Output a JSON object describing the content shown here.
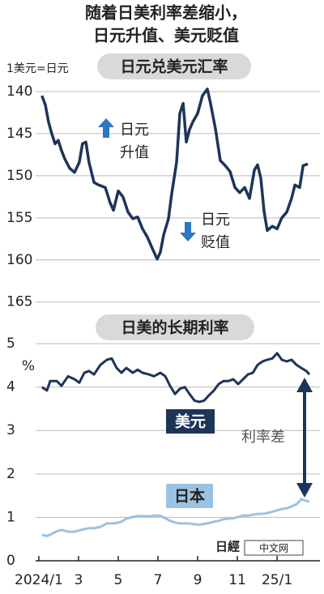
{
  "title": [
    "随着日美利率差缩小，",
    "日元升值、美元贬值"
  ],
  "logo": [
    "日經",
    "中文网"
  ],
  "chart_data": [
    {
      "type": "line",
      "title": "日元兑美元汇率",
      "y_unit": "1美元=日元",
      "annotations": [
        [
          "日元",
          "升值"
        ],
        [
          "日元",
          "贬值"
        ]
      ],
      "y_inverted": true,
      "grid": true,
      "xlim": [
        -0.16,
        14.16
      ],
      "ylim": [
        138.75,
        165.7
      ],
      "yticks": [
        140,
        145,
        150,
        155,
        160,
        165
      ],
      "x": [
        0.16,
        0.33,
        0.49,
        0.65,
        0.82,
        0.98,
        1.14,
        1.31,
        1.55,
        1.8,
        2.04,
        2.2,
        2.37,
        2.53,
        2.78,
        3.02,
        3.35,
        3.59,
        3.76,
        4.0,
        4.24,
        4.49,
        4.73,
        4.98,
        5.22,
        5.47,
        5.71,
        5.96,
        6.12,
        6.29,
        6.53,
        6.69,
        6.94,
        7.1,
        7.27,
        7.43,
        7.59,
        7.76,
        8.0,
        8.24,
        8.49,
        8.65,
        8.9,
        9.14,
        9.39,
        9.63,
        9.88,
        10.12,
        10.37,
        10.61,
        10.86,
        11.02,
        11.18,
        11.35,
        11.51,
        11.76,
        12.0,
        12.24,
        12.49,
        12.73,
        12.9,
        13.14,
        13.31,
        13.55
      ],
      "color": "#1d3557",
      "values": [
        140.5,
        141.6,
        143.6,
        145,
        146.2,
        145.8,
        147,
        148,
        149.1,
        149.6,
        148.4,
        146.2,
        146,
        148.4,
        150.8,
        151.1,
        151.4,
        153.2,
        154.1,
        151.8,
        152.5,
        154.3,
        155.1,
        154.9,
        156.3,
        157.3,
        158.6,
        159.9,
        159.1,
        157,
        155.1,
        152.2,
        148.4,
        142.6,
        141.4,
        146,
        144.5,
        143.6,
        142.6,
        140.5,
        139.7,
        141.4,
        144.5,
        148.2,
        148.8,
        149.5,
        151.4,
        152,
        151.4,
        152.7,
        149.3,
        148.7,
        150.3,
        154.3,
        156.5,
        156,
        156.3,
        155,
        154.3,
        152.7,
        151.1,
        151.4,
        148.8,
        148.6
      ]
    },
    {
      "type": "line",
      "title": "日美的长期利率",
      "y_unit": "%",
      "annotation": "利率差",
      "grid": true,
      "xlim": [
        -0.16,
        14.16
      ],
      "xticks": [
        {
          "value": 0,
          "label": "2024/1"
        },
        {
          "value": 2,
          "label": "3"
        },
        {
          "value": 4,
          "label": "5"
        },
        {
          "value": 6,
          "label": "7"
        },
        {
          "value": 8,
          "label": "9"
        },
        {
          "value": 10,
          "label": "11"
        },
        {
          "value": 12,
          "label": "25/1"
        }
      ],
      "ylim": [
        0,
        5.3
      ],
      "yticks": [
        0,
        1,
        2,
        3,
        4,
        5
      ],
      "x": [
        0.16,
        0.41,
        0.57,
        0.9,
        1.14,
        1.47,
        1.8,
        2.04,
        2.29,
        2.53,
        2.78,
        3.1,
        3.43,
        3.67,
        3.92,
        4.16,
        4.41,
        4.73,
        4.98,
        5.22,
        5.55,
        5.8,
        6.12,
        6.37,
        6.61,
        6.86,
        7.1,
        7.35,
        7.59,
        7.84,
        8.08,
        8.33,
        8.57,
        8.82,
        9.06,
        9.31,
        9.55,
        9.8,
        10.04,
        10.29,
        10.53,
        10.78,
        11.02,
        11.27,
        11.51,
        11.76,
        12.0,
        12.24,
        12.49,
        12.73,
        12.98,
        13.22,
        13.47,
        13.63
      ],
      "series": [
        {
          "name": "美元",
          "color": "#1d3557",
          "values": [
            4.0,
            3.92,
            4.14,
            4.14,
            4.03,
            4.25,
            4.18,
            4.1,
            4.33,
            4.37,
            4.29,
            4.51,
            4.63,
            4.66,
            4.44,
            4.33,
            4.44,
            4.33,
            4.4,
            4.33,
            4.29,
            4.25,
            4.33,
            4.25,
            4.03,
            3.84,
            3.96,
            4.0,
            3.84,
            3.69,
            3.66,
            3.69,
            3.81,
            3.92,
            4.07,
            4.14,
            4.14,
            4.18,
            4.07,
            4.18,
            4.29,
            4.33,
            4.51,
            4.59,
            4.63,
            4.66,
            4.78,
            4.63,
            4.59,
            4.63,
            4.51,
            4.44,
            4.37,
            4.29
          ]
        },
        {
          "name": "日本",
          "color": "#9cc2e2",
          "values": [
            0.6,
            0.57,
            0.6,
            0.68,
            0.71,
            0.67,
            0.67,
            0.7,
            0.73,
            0.75,
            0.75,
            0.78,
            0.86,
            0.86,
            0.87,
            0.9,
            0.97,
            1.01,
            1.03,
            1.03,
            1.02,
            1.04,
            1.04,
            0.98,
            0.92,
            0.88,
            0.86,
            0.86,
            0.86,
            0.84,
            0.83,
            0.85,
            0.87,
            0.9,
            0.92,
            0.96,
            0.97,
            0.98,
            1.01,
            1.04,
            1.04,
            1.06,
            1.08,
            1.08,
            1.1,
            1.13,
            1.16,
            1.19,
            1.21,
            1.25,
            1.3,
            1.42,
            1.38,
            1.36
          ]
        }
      ]
    }
  ]
}
